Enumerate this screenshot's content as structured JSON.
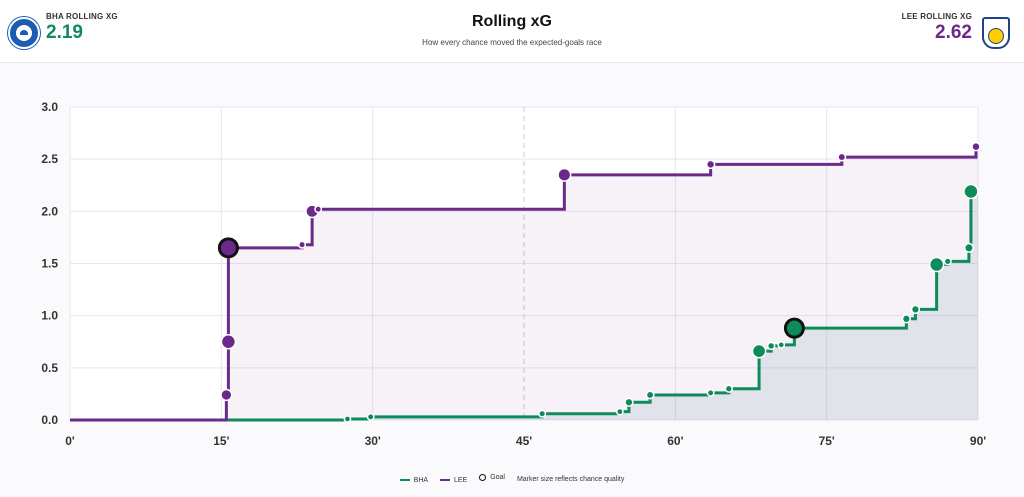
{
  "header": {
    "home_label": "BHA ROLLING XG",
    "home_value": "2.19",
    "away_label": "LEE ROLLING XG",
    "away_value": "2.62",
    "title": "Rolling xG",
    "subtitle": "How every chance moved the expected-goals race"
  },
  "colors": {
    "home": "#0f8a5a",
    "away": "#6b2a8a",
    "goal_ring": "#111111"
  },
  "legend": {
    "home": "BHA",
    "away": "LEE",
    "goal": "Goal",
    "note": "Marker size reflects chance quality"
  },
  "chart_data": {
    "type": "line",
    "title": "Rolling xG",
    "x_ticks": [
      "0'",
      "15'",
      "30'",
      "45'",
      "60'",
      "75'",
      "90'"
    ],
    "y_ticks": [
      "0.0",
      "0.5",
      "1.0",
      "1.5",
      "2.0",
      "2.5",
      "3.0"
    ],
    "xlim": [
      0,
      90
    ],
    "ylim": [
      0,
      3.0
    ],
    "halftime_minute": 45,
    "grid": true,
    "legend_position": "bottom-center",
    "series": [
      {
        "name": "BHA",
        "step": true,
        "points": [
          {
            "minute": 27.5,
            "cum": 0.01,
            "goal": false
          },
          {
            "minute": 29.8,
            "cum": 0.03,
            "goal": false
          },
          {
            "minute": 46.8,
            "cum": 0.06,
            "goal": false
          },
          {
            "minute": 54.5,
            "cum": 0.08,
            "goal": false
          },
          {
            "minute": 55.4,
            "cum": 0.17,
            "goal": false
          },
          {
            "minute": 57.5,
            "cum": 0.24,
            "goal": false
          },
          {
            "minute": 63.5,
            "cum": 0.26,
            "goal": false
          },
          {
            "minute": 65.3,
            "cum": 0.3,
            "goal": false
          },
          {
            "minute": 68.3,
            "cum": 0.66,
            "goal": false
          },
          {
            "minute": 69.5,
            "cum": 0.71,
            "goal": false
          },
          {
            "minute": 70.5,
            "cum": 0.72,
            "goal": false
          },
          {
            "minute": 71.8,
            "cum": 0.88,
            "goal": true
          },
          {
            "minute": 82.9,
            "cum": 0.97,
            "goal": false
          },
          {
            "minute": 83.8,
            "cum": 1.06,
            "goal": false
          },
          {
            "minute": 85.9,
            "cum": 1.49,
            "goal": false
          },
          {
            "minute": 87.0,
            "cum": 1.52,
            "goal": false
          },
          {
            "minute": 89.1,
            "cum": 1.65,
            "goal": false
          },
          {
            "minute": 89.3,
            "cum": 2.19,
            "goal": false
          }
        ]
      },
      {
        "name": "LEE",
        "step": true,
        "points": [
          {
            "minute": 15.5,
            "cum": 0.24,
            "goal": false
          },
          {
            "minute": 15.7,
            "cum": 0.75,
            "goal": false
          },
          {
            "minute": 15.7,
            "cum": 1.65,
            "goal": true
          },
          {
            "minute": 23.0,
            "cum": 1.68,
            "goal": false
          },
          {
            "minute": 24.0,
            "cum": 2.0,
            "goal": false
          },
          {
            "minute": 24.6,
            "cum": 2.02,
            "goal": false
          },
          {
            "minute": 49.0,
            "cum": 2.35,
            "goal": false
          },
          {
            "minute": 63.5,
            "cum": 2.45,
            "goal": false
          },
          {
            "minute": 76.5,
            "cum": 2.52,
            "goal": false
          },
          {
            "minute": 89.8,
            "cum": 2.62,
            "goal": false
          }
        ]
      }
    ]
  }
}
